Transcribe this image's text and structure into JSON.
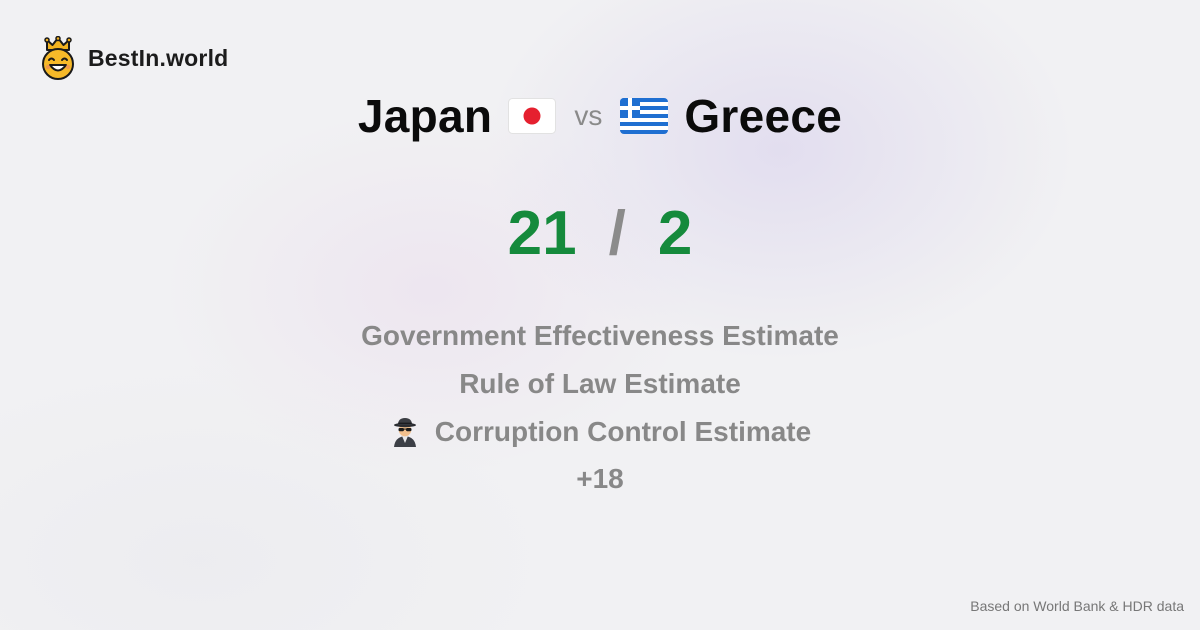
{
  "brand": {
    "name": "BestIn.world",
    "logo_icon": "smiling-crown-face-icon"
  },
  "comparison": {
    "left": {
      "name": "Japan",
      "flag_icon": "japan-flag-icon"
    },
    "vs_label": "vs",
    "right": {
      "name": "Greece",
      "flag_icon": "greece-flag-icon"
    }
  },
  "score": {
    "left": "21",
    "separator": "/",
    "right": "2",
    "color": "#158a3c"
  },
  "metrics": [
    {
      "label": "Government Effectiveness Estimate"
    },
    {
      "label": "Rule of Law Estimate"
    },
    {
      "label": "Corruption Control Estimate",
      "icon": "spy-detective-icon"
    }
  ],
  "more_label": "+18",
  "footer": {
    "source_text": "Based on World Bank & HDR data"
  }
}
